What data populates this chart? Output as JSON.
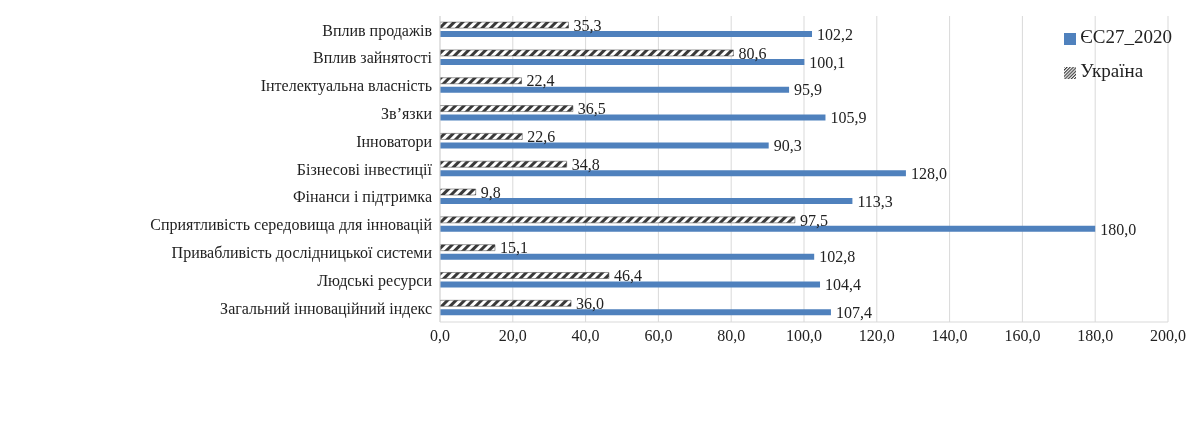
{
  "chart_data": {
    "type": "bar",
    "orientation": "horizontal",
    "categories": [
      "Вплив продажів",
      "Вплив зайнятості",
      "Інтелектуальна власність",
      "Зв’язки",
      "Інноватори",
      "Бізнесові  інвестиції",
      "Фінанси і підтримка",
      "Сприятливість середовища для інновацій",
      "Привабливість дослідницької системи",
      "Людські ресурси",
      "Загальний інноваційний індекс"
    ],
    "series": [
      {
        "name": "Україна",
        "color": "#3a3a3a",
        "values": [
          35.3,
          80.6,
          22.4,
          36.5,
          22.6,
          34.8,
          9.8,
          97.5,
          15.1,
          46.4,
          36.0
        ],
        "value_labels": [
          "35,3",
          "80,6",
          "22,4",
          "36,5",
          "22,6",
          "34,8",
          "9,8",
          "97,5",
          "15,1",
          "46,4",
          "36,0"
        ]
      },
      {
        "name": "ЄС27_2020",
        "color": "#4f81bd",
        "values": [
          102.2,
          100.1,
          95.9,
          105.9,
          90.3,
          128.0,
          113.3,
          180.0,
          102.8,
          104.4,
          107.4
        ],
        "value_labels": [
          "102,2",
          "100,1",
          "95,9",
          "105,9",
          "90,3",
          "128,0",
          "113,3",
          "180,0",
          "102,8",
          "104,4",
          "107,4"
        ]
      }
    ],
    "xlim": [
      0,
      200
    ],
    "xticks": [
      {
        "value": 0,
        "label": "0,0"
      },
      {
        "value": 20,
        "label": "20,0"
      },
      {
        "value": 40,
        "label": "40,0"
      },
      {
        "value": 60,
        "label": "60,0"
      },
      {
        "value": 80,
        "label": "80,0"
      },
      {
        "value": 100,
        "label": "100,0"
      },
      {
        "value": 120,
        "label": "120,0"
      },
      {
        "value": 140,
        "label": "140,0"
      },
      {
        "value": 160,
        "label": "160,0"
      },
      {
        "value": 180,
        "label": "180,0"
      },
      {
        "value": 200,
        "label": "200,0"
      }
    ],
    "grid": "x",
    "legend": "top right"
  }
}
